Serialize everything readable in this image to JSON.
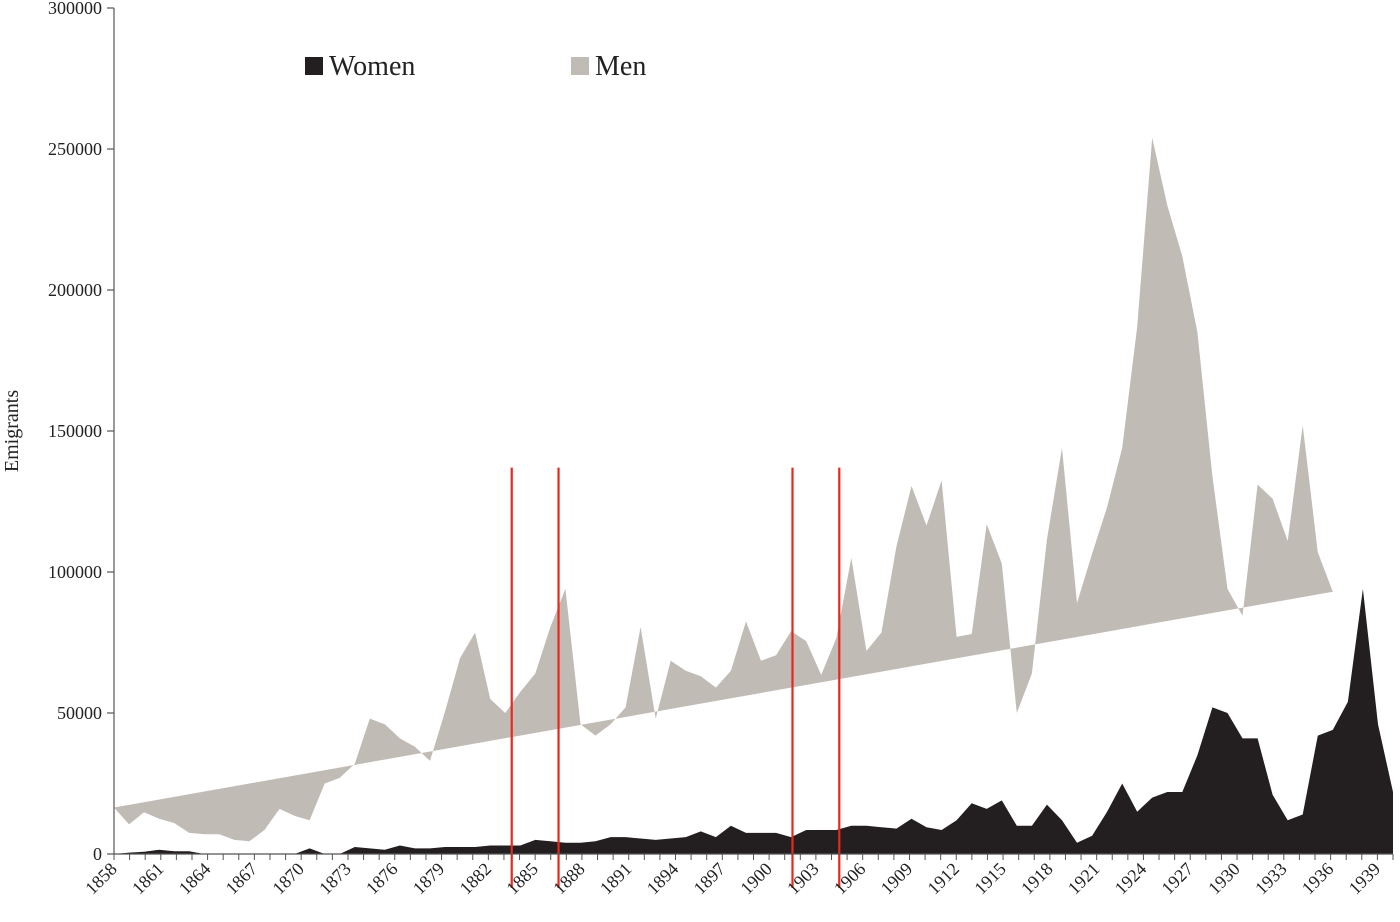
{
  "chart_data": {
    "type": "area",
    "stacked": true,
    "title": "",
    "xlabel": "",
    "ylabel": "Emigrants",
    "ylim": [
      0,
      300000
    ],
    "y_ticks": [
      0,
      50000,
      100000,
      150000,
      200000,
      250000,
      300000
    ],
    "x_start": 1858,
    "x_end": 1940,
    "x_tick_labels": [
      "1858",
      "1861",
      "1864",
      "1867",
      "1870",
      "1873",
      "1876",
      "1879",
      "1882",
      "1885",
      "1888",
      "1891",
      "1894",
      "1897",
      "1900",
      "1903",
      "1906",
      "1909",
      "1912",
      "1915",
      "1918",
      "1921",
      "1924",
      "1927",
      "1930",
      "1933",
      "1936",
      "1939"
    ],
    "grid": false,
    "legend_position": "top-left",
    "series": [
      {
        "name": "Women",
        "color": "#231f20",
        "values": [
          0,
          500,
          800,
          1500,
          1000,
          1000,
          0,
          0,
          0,
          0,
          0,
          0,
          0,
          2000,
          0,
          0,
          2500,
          2000,
          1500,
          3000,
          2000,
          2000,
          2500,
          2500,
          2500,
          3000,
          3000,
          3000,
          5000,
          4500,
          4000,
          4000,
          4500,
          6000,
          6000,
          5500,
          5000,
          5500,
          6000,
          8000,
          6000,
          10000,
          7500,
          7500,
          7500,
          6000,
          8500,
          8500,
          8500,
          10000,
          10000,
          9500,
          9000,
          12500,
          9500,
          8500,
          12000,
          18000,
          16000,
          19000,
          10000,
          10000,
          17500,
          12000,
          4000,
          6500,
          15000,
          25000,
          15000,
          20000,
          22000,
          22000,
          35000,
          52000,
          50000,
          41000,
          41000,
          21000,
          12000,
          14000,
          42000,
          44000,
          54000,
          94000,
          46000,
          22000
        ]
      },
      {
        "name": "Men",
        "color": "#c1bbb5",
        "values": [
          16500,
          10000,
          14000,
          11000,
          10000,
          6500,
          7000,
          7000,
          5000,
          4500,
          8500,
          16000,
          13500,
          10000,
          25000,
          27000,
          29500,
          46000,
          44500,
          38000,
          36000,
          31000,
          48000,
          67000,
          76000,
          52000,
          47000,
          54500,
          59000,
          76000,
          90000,
          42000,
          37500,
          40000,
          46000,
          75000,
          43000,
          63000,
          59000,
          55000,
          53000,
          55000,
          75000,
          61000,
          63000,
          73000,
          67000,
          55000,
          68000,
          95000,
          62000,
          69000,
          100000,
          118000,
          107000,
          124000,
          65000,
          60000,
          101000,
          84000,
          40000,
          54000,
          94000,
          132000,
          85000,
          100000,
          108000,
          119000,
          172000,
          234000,
          208000,
          190000,
          150000,
          82000,
          44000,
          43500,
          90000,
          105000,
          99000,
          138000,
          65000,
          49000
        ]
      }
    ],
    "markers": [
      {
        "year": 1883.5,
        "top": 137000,
        "color": "#e8271e"
      },
      {
        "year": 1886.5,
        "top": 137000,
        "color": "#e8271e"
      },
      {
        "year": 1901.5,
        "top": 137000,
        "color": "#e8271e"
      },
      {
        "year": 1904.5,
        "top": 137000,
        "color": "#e8271e"
      }
    ]
  }
}
